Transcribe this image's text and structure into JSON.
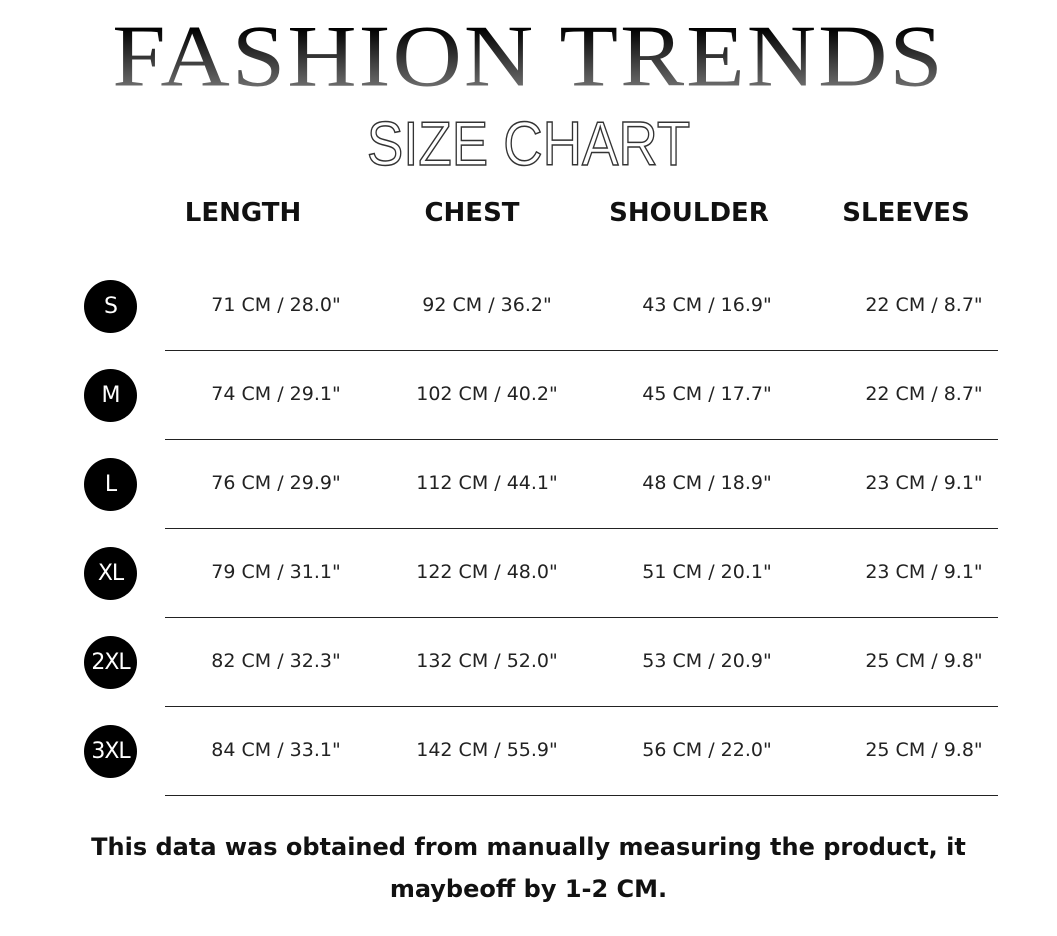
{
  "header": {
    "title": "FASHION TRENDS",
    "subtitle": "SIZE CHART"
  },
  "columns": [
    "LENGTH",
    "CHEST",
    "SHOULDER",
    "SLEEVES"
  ],
  "rows": [
    {
      "size": "S",
      "values": [
        "71 CM /  28.0\"",
        "92 CM /  36.2\"",
        "43 CM /  16.9\"",
        "22 CM /    8.7\""
      ]
    },
    {
      "size": "M",
      "values": [
        "74 CM /  29.1\"",
        "102 CM /  40.2\"",
        "45 CM /  17.7\"",
        "22 CM /    8.7\""
      ]
    },
    {
      "size": "L",
      "values": [
        "76 CM /  29.9\"",
        "112 CM /  44.1\"",
        "48 CM /  18.9\"",
        "23 CM /    9.1\""
      ]
    },
    {
      "size": "XL",
      "values": [
        "79 CM /   31.1\"",
        "122 CM /  48.0\"",
        "51 CM /  20.1\"",
        "23 CM /    9.1\""
      ]
    },
    {
      "size": "2XL",
      "values": [
        "82 CM /  32.3\"",
        "132 CM /  52.0\"",
        "53 CM /  20.9\"",
        "25 CM /    9.8\""
      ]
    },
    {
      "size": "3XL",
      "values": [
        "84 CM /  33.1\"",
        "142 CM /  55.9\"",
        "56 CM /  22.0\"",
        "25 CM /    9.8\""
      ]
    }
  ],
  "footnote": "This data was obtained from manually measuring the product, it maybeoff by 1-2 CM."
}
